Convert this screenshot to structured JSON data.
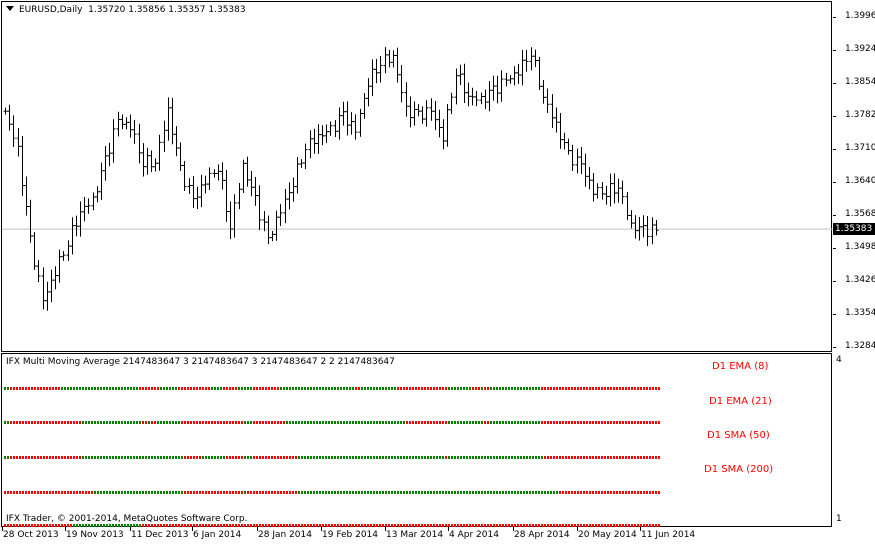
{
  "chart": {
    "symbol_timeframe": "EURUSD,Daily",
    "ohlc": "1.35720 1.35856 1.35357 1.35383",
    "current_price": "1.35383"
  },
  "price_axis": [
    "1.39960",
    "1.39240",
    "1.38540",
    "1.37820",
    "1.37100",
    "1.36400",
    "1.35680",
    "1.34980",
    "1.34260",
    "1.33540",
    "1.32840"
  ],
  "date_axis": [
    "28 Oct 2013",
    "19 Nov 2013",
    "11 Dec 2013",
    "6 Jan 2014",
    "28 Jan 2014",
    "19 Feb 2014",
    "13 Mar 2014",
    "4 Apr 2014",
    "28 Apr 2014",
    "20 May 2014",
    "11 Jun 2014"
  ],
  "indicator": {
    "title": "IFX Multi Moving Average 2147483647 3 2147483647 3 2147483647 2 2 2147483647",
    "copyright": "IFX Trader, © 2001-2014, MetaQuotes Software Corp.",
    "scale_max": "4",
    "scale_min": "1",
    "lines": [
      {
        "label": "D1 EMA (8)",
        "type": "EMA",
        "period": 8
      },
      {
        "label": "D1 EMA (21)",
        "type": "EMA",
        "period": 21
      },
      {
        "label": "D1 SMA (50)",
        "type": "SMA",
        "period": 50
      },
      {
        "label": "D1 SMA (200)",
        "type": "SMA",
        "period": 200
      }
    ],
    "colors": {
      "up": "#008000",
      "down": "#ff0000",
      "label": "#ff0000"
    }
  },
  "colors": {
    "bars": "#000000",
    "bid_line": "#c0c0c0",
    "background": "#ffffff"
  },
  "price_path": [
    1.3795,
    1.3709,
    1.3515,
    1.3385,
    1.345,
    1.3515,
    1.358,
    1.3601,
    1.3687,
    1.3774,
    1.3763,
    1.3687,
    1.3687,
    1.3795,
    1.3666,
    1.3601,
    1.3644,
    1.3677,
    1.3547,
    1.3677,
    1.3601,
    1.3515,
    1.358,
    1.3644,
    1.372,
    1.3741,
    1.3752,
    1.3785,
    1.3752,
    1.386,
    1.3903,
    1.3914,
    1.3795,
    1.3785,
    1.3795,
    1.3741,
    1.3882,
    1.3828,
    1.3817,
    1.3838,
    1.386,
    1.3882,
    1.3925,
    1.3828,
    1.3763,
    1.3698,
    1.3677,
    1.3623,
    1.3623,
    1.3634,
    1.3547,
    1.3536,
    1.3538
  ]
}
